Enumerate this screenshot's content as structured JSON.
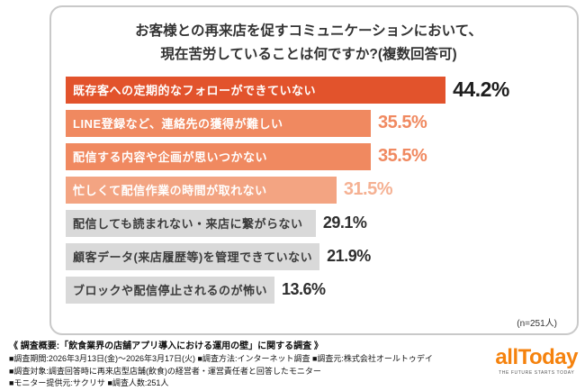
{
  "card": {
    "title_line1": "お客様との再来店を促すコミュニケーションにおいて、",
    "title_line2": "現在苦労していることは何ですか?(複数回答可)",
    "sample_note": "(n=251人)"
  },
  "chart_data": {
    "type": "bar",
    "orientation": "horizontal",
    "title": "お客様との再来店を促すコミュニケーションにおいて、現在苦労していることは何ですか?(複数回答可)",
    "categories": [
      "既存客への定期的なフォローができていない",
      "LINE登録など、連絡先の獲得が難しい",
      "配信する内容や企画が思いつかない",
      "忙しくて配信作業の時間が取れない",
      "配信しても読まれない・来店に繋がらない",
      "顧客データ(来店履歴等)を管理できていない",
      "ブロックや配信停止されるのが怖い"
    ],
    "values": [
      44.2,
      35.5,
      35.5,
      31.5,
      29.1,
      21.9,
      13.6
    ],
    "value_labels": [
      "44.2%",
      "35.5%",
      "35.5%",
      "31.5%",
      "29.1%",
      "21.9%",
      "13.6%"
    ],
    "unit": "%",
    "sample_size": "(n=251人)",
    "xlim": [
      0,
      46
    ],
    "grid": false,
    "legend": false,
    "bar_colors": [
      "#E2532C",
      "#F08960",
      "#F08960",
      "#F3A482",
      "#D9D9D9",
      "#D9D9D9",
      "#D9D9D9"
    ],
    "label_colors": [
      "#FFFFFF",
      "#FFFFFF",
      "#FFFFFF",
      "#FFFFFF",
      "#3C3C3C",
      "#3C3C3C",
      "#3C3C3C"
    ],
    "value_label_colors": [
      "#1E1E1E",
      "#F08960",
      "#F08960",
      "#F5B193",
      "#2E2E2E",
      "#2E2E2E",
      "#2E2E2E"
    ]
  },
  "footer": {
    "line1": "《 調査概要:「飲食業界の店舗アプリ導入における運用の壁」に関する調査 》",
    "line2": "■調査期間:2026年3月13日(金)〜2026年3月17日(火) ■調査方法:インターネット調査 ■調査元:株式会社オールトゥデイ",
    "line3": "■調査対象:調査回答時に再来店型店舗(飲食)の経営者・運営責任者と回答したモニター",
    "line4": "■モニター提供元:サクリサ ■調査人数:251人"
  },
  "logo": {
    "name": "allToday",
    "tagline": "THE FUTURE STARTS TODAY",
    "brand_color": "#F5820D"
  }
}
